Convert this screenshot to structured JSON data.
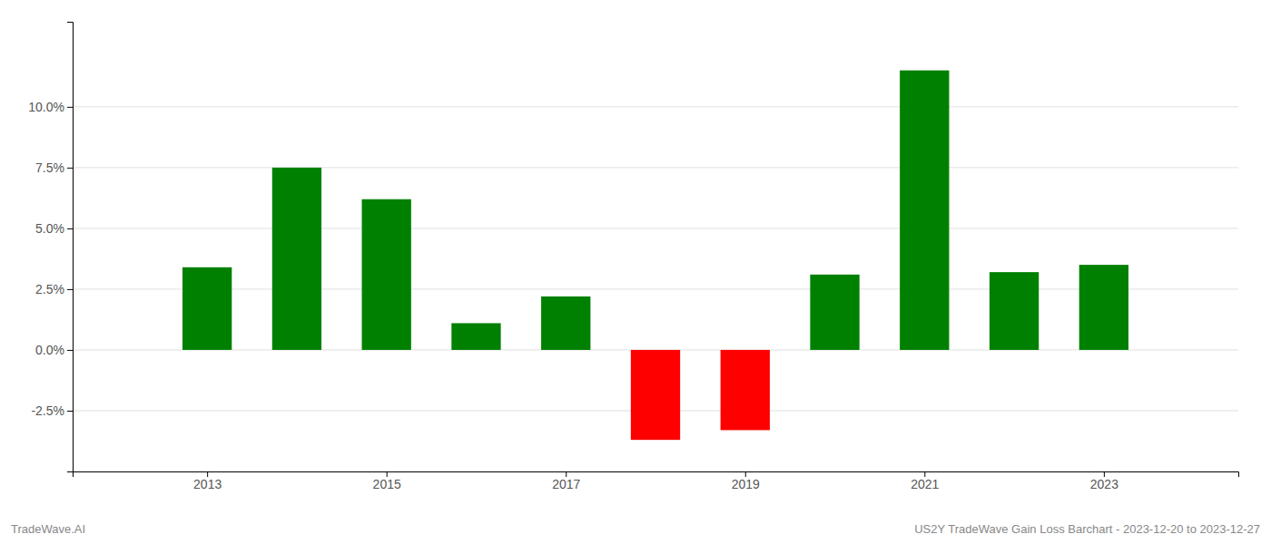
{
  "chart_data": {
    "type": "bar",
    "x": [
      2013,
      2014,
      2015,
      2016,
      2017,
      2018,
      2019,
      2020,
      2021,
      2022,
      2023
    ],
    "values": [
      3.4,
      7.5,
      6.2,
      1.1,
      2.2,
      -3.7,
      -3.3,
      3.1,
      11.5,
      3.2,
      3.5
    ],
    "colors": [
      "#008000",
      "#008000",
      "#008000",
      "#008000",
      "#008000",
      "#ff0000",
      "#ff0000",
      "#008000",
      "#008000",
      "#008000",
      "#008000"
    ],
    "xlim": [
      2011.5,
      2024.5
    ],
    "xticks": [
      2013,
      2015,
      2017,
      2019,
      2021,
      2023
    ],
    "ylim": [
      -5.0,
      13.5
    ],
    "yticks": [
      {
        "value": -2.5,
        "label": "-2.5%"
      },
      {
        "value": 0.0,
        "label": "0.0%"
      },
      {
        "value": 2.5,
        "label": "2.5%"
      },
      {
        "value": 5.0,
        "label": "5.0%"
      },
      {
        "value": 7.5,
        "label": "7.5%"
      },
      {
        "value": 10.0,
        "label": "10.0%"
      }
    ],
    "grid": true,
    "annotations": [
      "TradeWave.AI",
      "US2Y TradeWave Gain Loss Barchart - 2023-12-20 to 2023-12-27"
    ]
  }
}
